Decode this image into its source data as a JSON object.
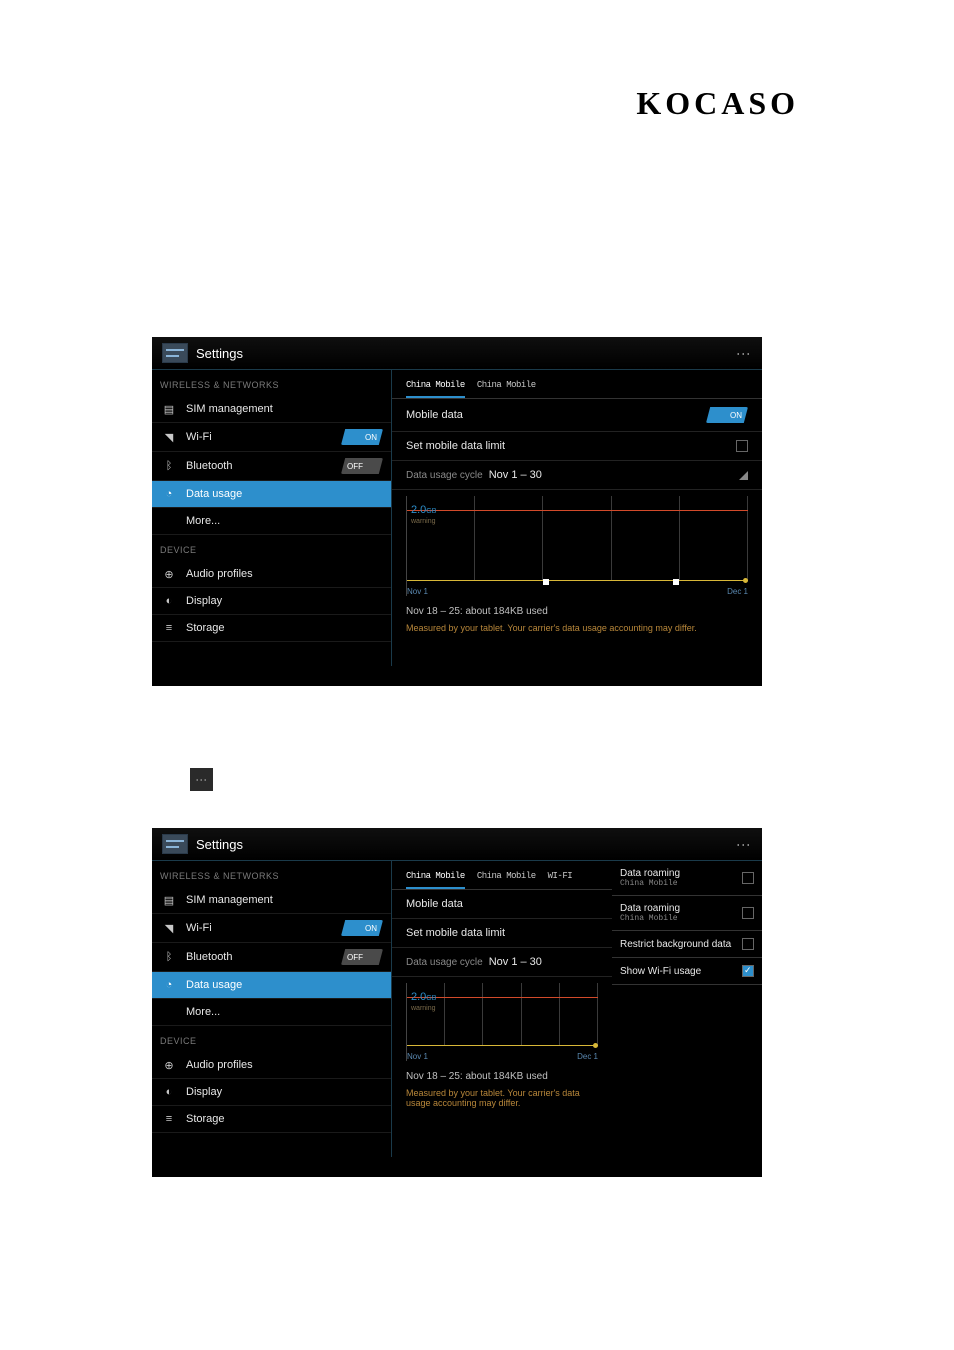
{
  "brand": "KOCASO",
  "shot1": {
    "title": "Settings",
    "section_wireless": "WIRELESS & NETWORKS",
    "section_device": "DEVICE",
    "sidebar": [
      {
        "icon": "📶",
        "label": "SIM management",
        "toggle": null
      },
      {
        "icon": "📶",
        "label": "Wi-Fi",
        "toggle": "ON"
      },
      {
        "icon": "ᛒ",
        "label": "Bluetooth",
        "toggle": "OFF"
      },
      {
        "icon": "◔",
        "label": "Data usage",
        "toggle": null,
        "active": true
      },
      {
        "icon": "",
        "label": "More...",
        "toggle": null
      },
      {
        "icon": "⊕",
        "label": "Audio profiles",
        "toggle": null
      },
      {
        "icon": "◐",
        "label": "Display",
        "toggle": null
      },
      {
        "icon": "≡",
        "label": "Storage",
        "toggle": null
      }
    ],
    "tabs": [
      "China Mobile",
      "China Mobile"
    ],
    "mobile_data": "Mobile data",
    "mobile_data_toggle": "ON",
    "set_limit": "Set mobile data limit",
    "cycle_prefix": "Data usage cycle",
    "cycle_value": "Nov 1 – 30",
    "chart_value": "2.0",
    "chart_unit": "GB",
    "chart_warning": "warning",
    "chart_x_left": "Nov 1",
    "chart_x_right": "Dec 1",
    "footer1": "Nov 18 – 25: about 184KB used",
    "footer2": "Measured by your tablet. Your carrier's data usage accounting may differ."
  },
  "shot2": {
    "title": "Settings",
    "section_wireless": "WIRELESS & NETWORKS",
    "section_device": "DEVICE",
    "sidebar": [
      {
        "icon": "📶",
        "label": "SIM management",
        "toggle": null
      },
      {
        "icon": "📶",
        "label": "Wi-Fi",
        "toggle": "ON"
      },
      {
        "icon": "ᛒ",
        "label": "Bluetooth",
        "toggle": "OFF"
      },
      {
        "icon": "◔",
        "label": "Data usage",
        "toggle": null,
        "active": true
      },
      {
        "icon": "",
        "label": "More...",
        "toggle": null
      },
      {
        "icon": "⊕",
        "label": "Audio profiles",
        "toggle": null
      },
      {
        "icon": "◐",
        "label": "Display",
        "toggle": null
      },
      {
        "icon": "≡",
        "label": "Storage",
        "toggle": null
      }
    ],
    "tabs": [
      "China Mobile",
      "China Mobile",
      "WI-FI"
    ],
    "mobile_data": "Mobile data",
    "set_limit": "Set mobile data limit",
    "cycle_prefix": "Data usage cycle",
    "cycle_value": "Nov 1 – 30",
    "chart_value": "2.0",
    "chart_unit": "GB",
    "chart_warning": "warning",
    "chart_x_left": "Nov 1",
    "chart_x_right": "Dec 1",
    "footer1": "Nov 18 – 25: about 184KB used",
    "footer2": "Measured by your tablet. Your carrier's data usage accounting may differ.",
    "right_menu": [
      {
        "label": "Data roaming",
        "sub": "China Mobile",
        "checked": false
      },
      {
        "label": "Data roaming",
        "sub": "China Mobile",
        "checked": false
      },
      {
        "label": "Restrict background data",
        "sub": "",
        "checked": false
      },
      {
        "label": "Show Wi-Fi usage",
        "sub": "",
        "checked": true
      }
    ]
  }
}
